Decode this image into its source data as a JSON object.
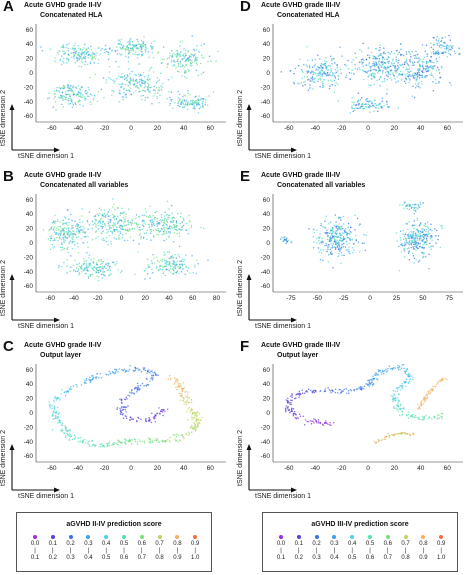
{
  "panels": [
    {
      "label": "A",
      "title": "Acute GVHD grade II-IV",
      "subtitle": "Concatenated HLA",
      "xlabel": "tSNE dimension 1",
      "ylabel": "tSNE dimension 2",
      "xticks": [
        -60,
        -40,
        -20,
        0,
        20,
        40,
        60
      ],
      "yticks": [
        -60,
        -40,
        -20,
        0,
        20,
        40,
        60
      ],
      "xlim": [
        -72,
        72
      ],
      "ylim": [
        -68,
        68
      ]
    },
    {
      "label": "D",
      "title": "Acute GVHD grade III-IV",
      "subtitle": "Concatenated HLA",
      "xlabel": "tSNE dimension 1",
      "ylabel": "tSNE dimension 2",
      "xticks": [
        -60,
        -40,
        -20,
        0,
        20,
        40,
        60
      ],
      "yticks": [
        -60,
        -40,
        -20,
        0,
        20,
        40,
        60
      ],
      "xlim": [
        -72,
        72
      ],
      "ylim": [
        -68,
        68
      ]
    },
    {
      "label": "B",
      "title": "Acute GVHD grade II-IV",
      "subtitle": "Concatenated all variables",
      "xlabel": "tSNE dimension 1",
      "ylabel": "tSNE dimension 2",
      "xticks": [
        -60,
        -40,
        -20,
        0,
        20,
        40,
        60,
        80
      ],
      "yticks": [
        -60,
        -40,
        -20,
        0,
        20,
        40,
        60
      ],
      "xlim": [
        -72,
        88
      ],
      "ylim": [
        -68,
        68
      ]
    },
    {
      "label": "E",
      "title": "Acute GVHD grade III-IV",
      "subtitle": "Concatenated all variables",
      "xlabel": "tSNE dimension 1",
      "ylabel": "tSNE dimension 2",
      "xticks": [
        -75,
        -50,
        -25,
        0,
        25,
        50,
        75
      ],
      "yticks": [
        -60,
        -40,
        -20,
        0,
        20,
        40,
        60
      ],
      "xlim": [
        -92,
        88
      ],
      "ylim": [
        -68,
        68
      ]
    },
    {
      "label": "C",
      "title": "Acute GVHD grade II-IV",
      "subtitle": "Output layer",
      "xlabel": "tSNE dimension 1",
      "ylabel": "tSNE dimension 2",
      "xticks": [
        -60,
        -40,
        -20,
        0,
        20,
        40,
        60
      ],
      "yticks": [
        -60,
        -40,
        -20,
        0,
        20,
        40,
        60
      ],
      "xlim": [
        -72,
        72
      ],
      "ylim": [
        -68,
        68
      ]
    },
    {
      "label": "F",
      "title": "Acute GVHD grade III-IV",
      "subtitle": "Output layer",
      "xlabel": "tSNE dimension 1",
      "ylabel": "tSNE dimension 2",
      "xticks": [
        -60,
        -40,
        -20,
        0,
        20,
        40,
        60
      ],
      "yticks": [
        -60,
        -40,
        -20,
        0,
        20,
        40,
        60
      ],
      "xlim": [
        -72,
        72
      ],
      "ylim": [
        -68,
        68
      ]
    }
  ],
  "legends": [
    {
      "title": "aGVHD II-IV prediction score"
    },
    {
      "title": "aGVHD III-IV prediction score"
    }
  ],
  "legend_bins": [
    {
      "lo": "0.0",
      "hi": "0.1",
      "color": "#9b30d9"
    },
    {
      "lo": "0.1",
      "hi": "0.2",
      "color": "#5a3fd9"
    },
    {
      "lo": "0.2",
      "hi": "0.3",
      "color": "#3f6fe0"
    },
    {
      "lo": "0.3",
      "hi": "0.4",
      "color": "#3fa0ea"
    },
    {
      "lo": "0.4",
      "hi": "0.5",
      "color": "#4fd0e6"
    },
    {
      "lo": "0.5",
      "hi": "0.6",
      "color": "#4fe0b4"
    },
    {
      "lo": "0.6",
      "hi": "0.7",
      "color": "#7ae07a"
    },
    {
      "lo": "0.7",
      "hi": "0.8",
      "color": "#b8d860"
    },
    {
      "lo": "0.8",
      "hi": "0.9",
      "color": "#f0b060"
    },
    {
      "lo": "0.9",
      "hi": "1.0",
      "color": "#f07040"
    }
  ],
  "chart_data": [
    {
      "type": "scatter",
      "panel": "A",
      "title": "Acute GVHD grade II-IV",
      "subtitle": "Concatenated HLA",
      "xlabel": "tSNE dimension 1",
      "ylabel": "tSNE dimension 2",
      "xlim": [
        -72,
        72
      ],
      "ylim": [
        -68,
        68
      ],
      "clusters": [
        {
          "cx": -40,
          "cy": 25,
          "sx": 18,
          "sy": 14,
          "n": 160,
          "score": [
            0.3,
            0.7
          ]
        },
        {
          "cx": -45,
          "cy": -30,
          "sx": 15,
          "sy": 14,
          "n": 150,
          "score": [
            0.3,
            0.7
          ]
        },
        {
          "cx": 0,
          "cy": 35,
          "sx": 18,
          "sy": 12,
          "n": 150,
          "score": [
            0.3,
            0.7
          ]
        },
        {
          "cx": 5,
          "cy": -15,
          "sx": 22,
          "sy": 20,
          "n": 200,
          "score": [
            0.3,
            0.7
          ]
        },
        {
          "cx": 42,
          "cy": 18,
          "sx": 14,
          "sy": 18,
          "n": 150,
          "score": [
            0.3,
            0.7
          ]
        },
        {
          "cx": 45,
          "cy": -40,
          "sx": 14,
          "sy": 10,
          "n": 110,
          "score": [
            0.3,
            0.7
          ]
        }
      ]
    },
    {
      "type": "scatter",
      "panel": "D",
      "title": "Acute GVHD grade III-IV",
      "subtitle": "Concatenated HLA",
      "xlabel": "tSNE dimension 1",
      "ylabel": "tSNE dimension 2",
      "xlim": [
        -72,
        72
      ],
      "ylim": [
        -68,
        68
      ],
      "clusters": [
        {
          "cx": -35,
          "cy": 0,
          "sx": 18,
          "sy": 20,
          "n": 200,
          "score": [
            0.2,
            0.6
          ]
        },
        {
          "cx": 10,
          "cy": 10,
          "sx": 20,
          "sy": 22,
          "n": 260,
          "score": [
            0.2,
            0.6
          ]
        },
        {
          "cx": 40,
          "cy": 5,
          "sx": 16,
          "sy": 22,
          "n": 200,
          "score": [
            0.2,
            0.6
          ]
        },
        {
          "cx": 55,
          "cy": 35,
          "sx": 10,
          "sy": 14,
          "n": 90,
          "score": [
            0.2,
            0.6
          ]
        },
        {
          "cx": 0,
          "cy": -45,
          "sx": 16,
          "sy": 8,
          "n": 90,
          "score": [
            0.2,
            0.6
          ]
        }
      ]
    },
    {
      "type": "scatter",
      "panel": "B",
      "title": "Acute GVHD grade II-IV",
      "subtitle": "Concatenated all variables",
      "xlabel": "tSNE dimension 1",
      "ylabel": "tSNE dimension 2",
      "xlim": [
        -72,
        88
      ],
      "ylim": [
        -68,
        68
      ],
      "clusters": [
        {
          "cx": -45,
          "cy": 15,
          "sx": 16,
          "sy": 22,
          "n": 200,
          "score": [
            0.3,
            0.7
          ]
        },
        {
          "cx": -5,
          "cy": 25,
          "sx": 20,
          "sy": 20,
          "n": 220,
          "score": [
            0.3,
            0.7
          ]
        },
        {
          "cx": 35,
          "cy": 25,
          "sx": 20,
          "sy": 18,
          "n": 200,
          "score": [
            0.3,
            0.7
          ]
        },
        {
          "cx": -25,
          "cy": -35,
          "sx": 20,
          "sy": 12,
          "n": 150,
          "score": [
            0.3,
            0.7
          ]
        },
        {
          "cx": 40,
          "cy": -30,
          "sx": 18,
          "sy": 15,
          "n": 150,
          "score": [
            0.3,
            0.7
          ]
        }
      ]
    },
    {
      "type": "scatter",
      "panel": "E",
      "title": "Acute GVHD grade III-IV",
      "subtitle": "Concatenated all variables",
      "xlabel": "tSNE dimension 1",
      "ylabel": "tSNE dimension 2",
      "xlim": [
        -92,
        88
      ],
      "ylim": [
        -68,
        68
      ],
      "clusters": [
        {
          "cx": -80,
          "cy": 5,
          "sx": 4,
          "sy": 5,
          "n": 25,
          "score": [
            0.2,
            0.6
          ]
        },
        {
          "cx": -30,
          "cy": 5,
          "sx": 18,
          "sy": 25,
          "n": 280,
          "score": [
            0.2,
            0.6
          ]
        },
        {
          "cx": 45,
          "cy": 5,
          "sx": 16,
          "sy": 25,
          "n": 260,
          "score": [
            0.2,
            0.6
          ]
        },
        {
          "cx": 40,
          "cy": 50,
          "sx": 8,
          "sy": 6,
          "n": 40,
          "score": [
            0.2,
            0.6
          ]
        }
      ]
    },
    {
      "type": "scatter",
      "panel": "C",
      "title": "Acute GVHD grade II-IV",
      "subtitle": "Output layer",
      "xlabel": "tSNE dimension 1",
      "ylabel": "tSNE dimension 2",
      "xlim": [
        -72,
        72
      ],
      "ylim": [
        -68,
        68
      ],
      "curves": [
        {
          "points": [
            [
              -60,
              15
            ],
            [
              -45,
              35
            ],
            [
              -20,
              55
            ],
            [
              5,
              62
            ],
            [
              20,
              55
            ],
            [
              10,
              40
            ],
            [
              -5,
              20
            ],
            [
              -8,
              0
            ],
            [
              0,
              -8
            ],
            [
              15,
              -10
            ],
            [
              25,
              5
            ]
          ],
          "score": [
            0.45,
            0.1
          ],
          "n": 260,
          "jitter": 3
        },
        {
          "points": [
            [
              -60,
              15
            ],
            [
              -55,
              -10
            ],
            [
              -45,
              -35
            ],
            [
              -25,
              -45
            ],
            [
              0,
              -38
            ],
            [
              25,
              -40
            ],
            [
              42,
              -30
            ],
            [
              50,
              -15
            ],
            [
              48,
              0
            ],
            [
              42,
              15
            ],
            [
              38,
              35
            ],
            [
              32,
              50
            ]
          ],
          "score": [
            0.45,
            0.85
          ],
          "n": 360,
          "jitter": 3.5
        }
      ]
    },
    {
      "type": "scatter",
      "panel": "F",
      "title": "Acute GVHD grade III-IV",
      "subtitle": "Output layer",
      "xlabel": "tSNE dimension 1",
      "ylabel": "tSNE dimension 2",
      "xlim": [
        -72,
        72
      ],
      "ylim": [
        -68,
        68
      ],
      "curves": [
        {
          "points": [
            [
              -28,
              -15
            ],
            [
              -40,
              -12
            ],
            [
              -55,
              -5
            ],
            [
              -62,
              10
            ],
            [
              -55,
              25
            ],
            [
              -35,
              32
            ],
            [
              -15,
              30
            ],
            [
              0,
              38
            ],
            [
              10,
              58
            ],
            [
              25,
              65
            ],
            [
              32,
              50
            ],
            [
              20,
              25
            ],
            [
              25,
              0
            ],
            [
              40,
              -8
            ],
            [
              55,
              -5
            ]
          ],
          "score": [
            0.05,
            0.6
          ],
          "n": 380,
          "jitter": 3
        },
        {
          "points": [
            [
              38,
              5
            ],
            [
              45,
              25
            ],
            [
              52,
              40
            ],
            [
              58,
              48
            ]
          ],
          "score": [
            0.85,
            0.85
          ],
          "n": 60,
          "jitter": 1.5
        },
        {
          "points": [
            [
              5,
              -42
            ],
            [
              15,
              -32
            ],
            [
              25,
              -28
            ],
            [
              35,
              -30
            ]
          ],
          "score": [
            0.8,
            0.8
          ],
          "n": 55,
          "jitter": 1.5
        }
      ]
    }
  ]
}
